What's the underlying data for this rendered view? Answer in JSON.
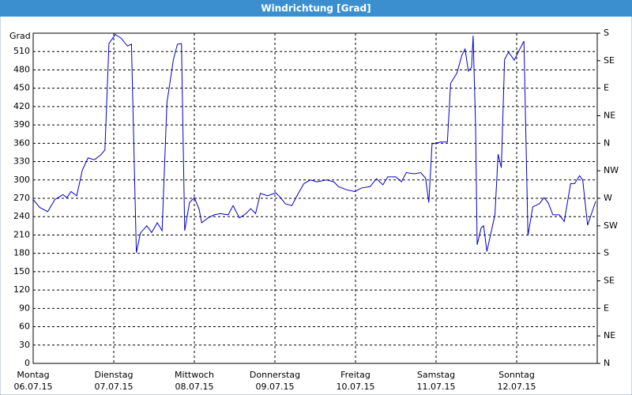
{
  "chart_data": {
    "type": "line",
    "title": "Windrichtung [Grad]",
    "ylabel": "Grad",
    "xlim": [
      0,
      7
    ],
    "xticks": [
      {
        "value": 0,
        "label": "Montag",
        "sublabel": "06.07.15"
      },
      {
        "value": 1,
        "label": "Dienstag",
        "sublabel": "07.07.15"
      },
      {
        "value": 2,
        "label": "Mittwoch",
        "sublabel": "08.07.15"
      },
      {
        "value": 3,
        "label": "Donnerstag",
        "sublabel": "09.07.15"
      },
      {
        "value": 4,
        "label": "Freitag",
        "sublabel": "10.07.15"
      },
      {
        "value": 5,
        "label": "Samstag",
        "sublabel": "11.07.15"
      },
      {
        "value": 6,
        "label": "Sonntag",
        "sublabel": "12.07.15"
      }
    ],
    "ylim": [
      0,
      540
    ],
    "yticks": [
      0,
      30,
      60,
      90,
      120,
      150,
      180,
      210,
      240,
      270,
      300,
      330,
      360,
      390,
      420,
      450,
      480,
      510
    ],
    "y2lim": [
      0,
      540
    ],
    "y2ticks": [
      {
        "value": 0,
        "label": "N"
      },
      {
        "value": 45,
        "label": "NE"
      },
      {
        "value": 90,
        "label": "E"
      },
      {
        "value": 135,
        "label": "SE"
      },
      {
        "value": 180,
        "label": "S"
      },
      {
        "value": 225,
        "label": "SW"
      },
      {
        "value": 270,
        "label": "W"
      },
      {
        "value": 315,
        "label": "NW"
      },
      {
        "value": 360,
        "label": "N"
      },
      {
        "value": 405,
        "label": "NE"
      },
      {
        "value": 450,
        "label": "E"
      },
      {
        "value": 495,
        "label": "SE"
      },
      {
        "value": 540,
        "label": "S"
      }
    ],
    "grid": true,
    "series": [
      {
        "color": "#0000c8",
        "x": [
          0,
          0.08,
          0.18,
          0.27,
          0.37,
          0.42,
          0.47,
          0.54,
          0.61,
          0.68,
          0.76,
          0.84,
          0.89,
          0.94,
          1.02,
          1.09,
          1.17,
          1.22,
          1.28,
          1.33,
          1.41,
          1.47,
          1.54,
          1.6,
          1.66,
          1.74,
          1.79,
          1.84,
          1.88,
          1.94,
          2.0,
          2.06,
          2.09,
          2.17,
          2.25,
          2.32,
          2.42,
          2.48,
          2.56,
          2.64,
          2.7,
          2.76,
          2.82,
          2.91,
          3.01,
          3.07,
          3.13,
          3.21,
          3.29,
          3.36,
          3.44,
          3.52,
          3.64,
          3.73,
          3.79,
          3.89,
          3.99,
          4.08,
          4.18,
          4.26,
          4.34,
          4.4,
          4.5,
          4.57,
          4.63,
          4.73,
          4.81,
          4.87,
          4.91,
          4.95,
          5.06,
          5.14,
          5.18,
          5.26,
          5.32,
          5.36,
          5.4,
          5.44,
          5.46,
          5.49,
          5.51,
          5.56,
          5.59,
          5.63,
          5.69,
          5.73,
          5.77,
          5.81,
          5.85,
          5.9,
          5.97,
          6.02,
          6.09,
          6.14,
          6.2,
          6.28,
          6.34,
          6.39,
          6.45,
          6.53,
          6.59,
          6.67,
          6.72,
          6.78,
          6.82,
          6.88,
          6.98
        ],
        "values": [
          268,
          255,
          248,
          268,
          276,
          271,
          281,
          274,
          316,
          336,
          333,
          341,
          349,
          523,
          538,
          532,
          519,
          522,
          181,
          213,
          225,
          214,
          230,
          217,
          426,
          497,
          522,
          523,
          217,
          263,
          271,
          252,
          230,
          238,
          243,
          245,
          243,
          258,
          238,
          245,
          253,
          245,
          278,
          274,
          279,
          271,
          261,
          258,
          278,
          294,
          300,
          297,
          300,
          297,
          289,
          284,
          281,
          287,
          289,
          302,
          292,
          305,
          305,
          297,
          312,
          310,
          312,
          303,
          263,
          359,
          362,
          362,
          458,
          475,
          504,
          514,
          478,
          484,
          536,
          387,
          194,
          222,
          225,
          183,
          219,
          243,
          342,
          320,
          497,
          509,
          496,
          509,
          527,
          209,
          256,
          261,
          271,
          263,
          243,
          243,
          232,
          294,
          294,
          307,
          300,
          226,
          265
        ]
      }
    ]
  }
}
